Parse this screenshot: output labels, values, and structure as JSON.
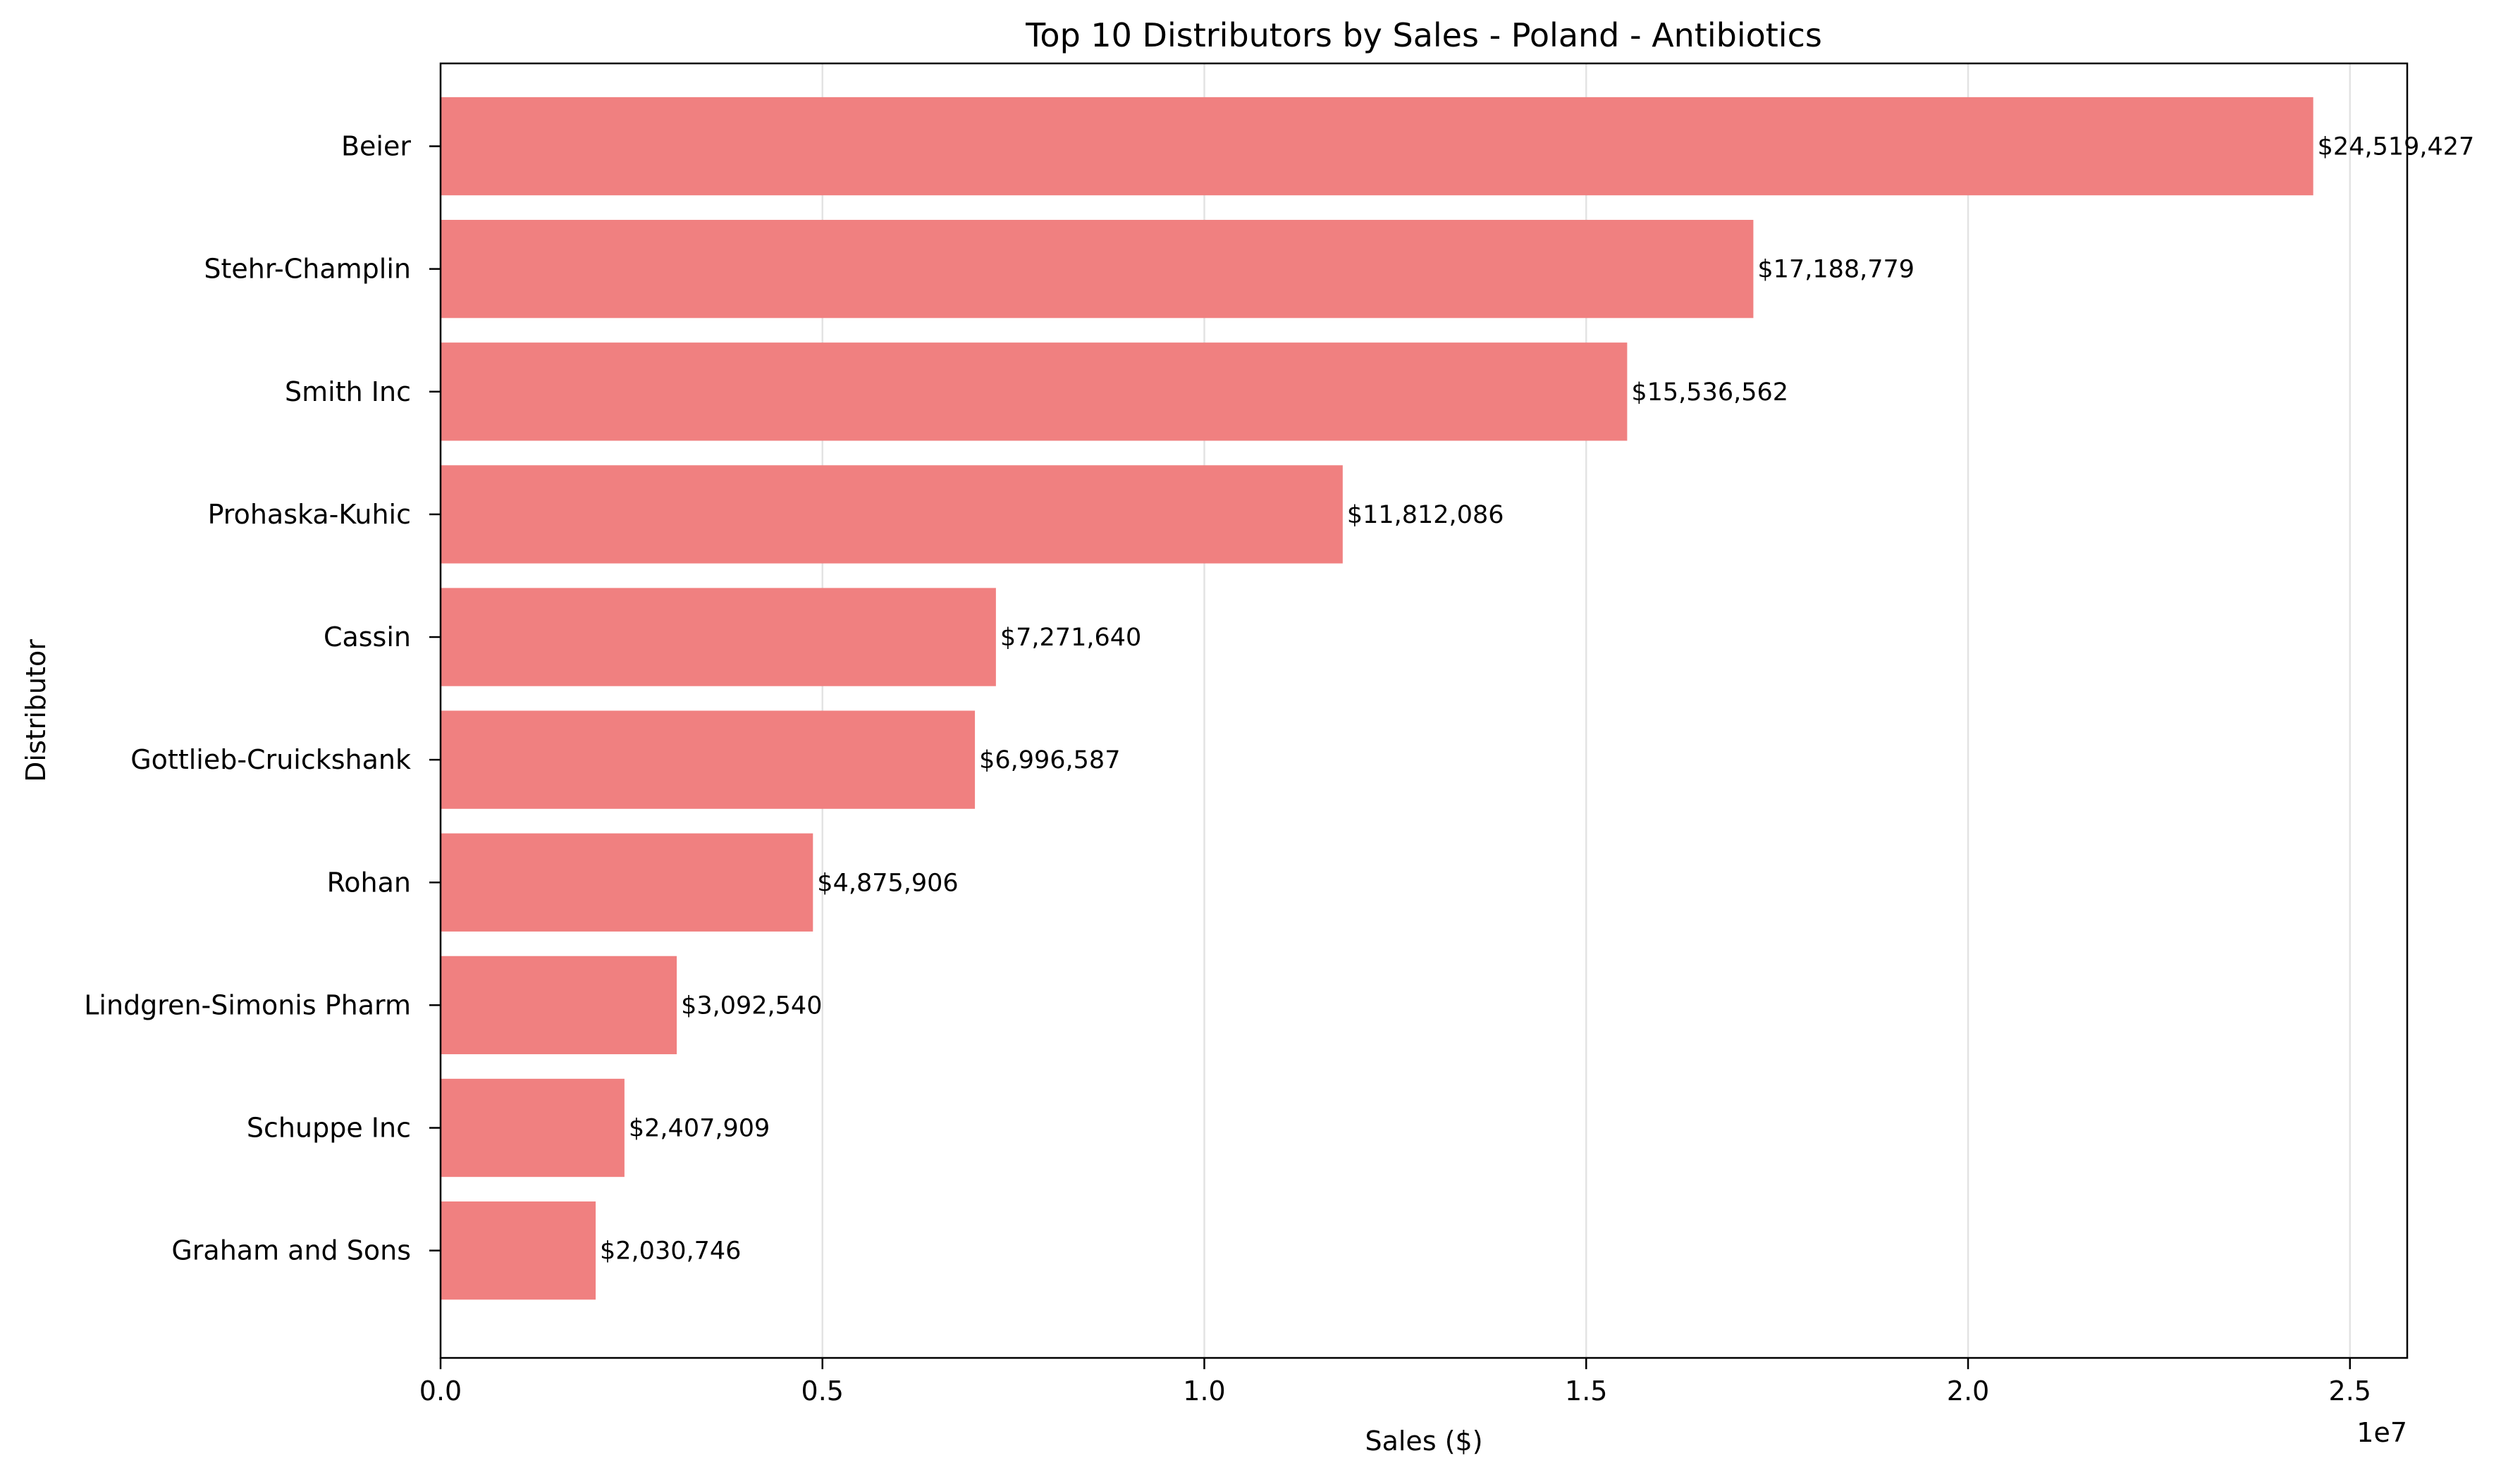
{
  "chart_data": {
    "type": "bar",
    "orientation": "horizontal",
    "title": "Top 10 Distributors by Sales - Poland - Antibiotics",
    "xlabel": "Sales ($)",
    "ylabel": "Distributor",
    "x_offset_label": "1e7",
    "xlim": [
      0,
      25750000
    ],
    "x_ticks": [
      0,
      5000000,
      10000000,
      15000000,
      20000000,
      25000000
    ],
    "x_tick_labels": [
      "0.0",
      "0.5",
      "1.0",
      "1.5",
      "2.0",
      "2.5"
    ],
    "grid": "x",
    "bar_color": "#f08080",
    "categories": [
      "Beier",
      "Stehr-Champlin",
      "Smith Inc",
      "Prohaska-Kuhic",
      "Cassin",
      "Gottlieb-Cruickshank",
      "Rohan",
      "Lindgren-Simonis Pharm",
      "Schuppe Inc",
      "Graham and Sons"
    ],
    "values": [
      24519427,
      17188779,
      15536562,
      11812086,
      7271640,
      6996587,
      4875906,
      3092540,
      2407909,
      2030746
    ],
    "data_labels": [
      "$24,519,427",
      "$17,188,779",
      "$15,536,562",
      "$11,812,086",
      "$7,271,640",
      "$6,996,587",
      "$4,875,906",
      "$3,092,540",
      "$2,407,909",
      "$2,030,746"
    ]
  }
}
